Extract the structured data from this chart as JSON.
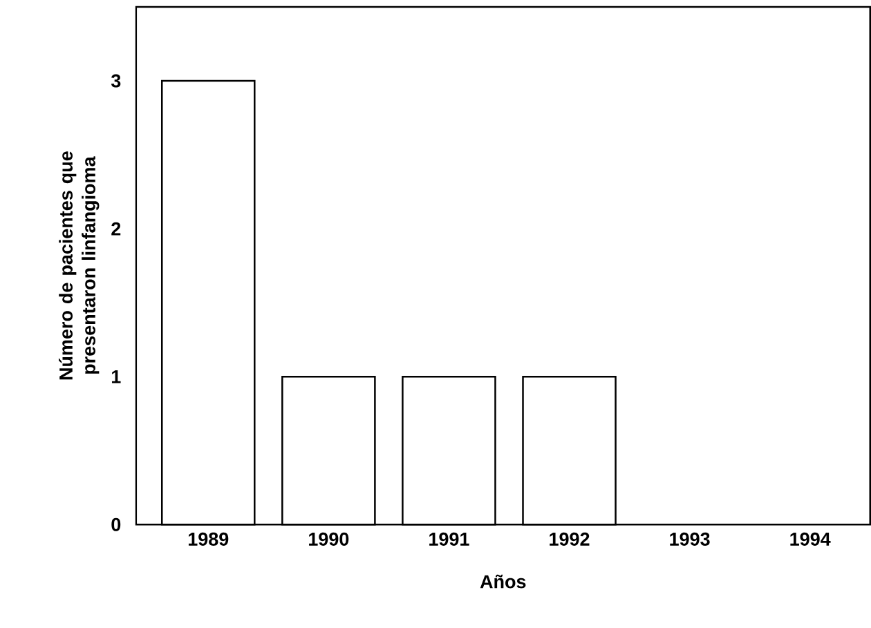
{
  "chart_data": {
    "type": "bar",
    "xlabel": "Años",
    "ylabel": "Número de pacientes que presentaron linfangioma",
    "categories": [
      "1989",
      "1990",
      "1991",
      "1992",
      "1993",
      "1994"
    ],
    "values": [
      3,
      1,
      1,
      1,
      0,
      0
    ],
    "color": "#ffffff",
    "ylim": [
      0,
      3.5
    ],
    "yticks": [
      0,
      1,
      2,
      3
    ],
    "grid": false
  }
}
